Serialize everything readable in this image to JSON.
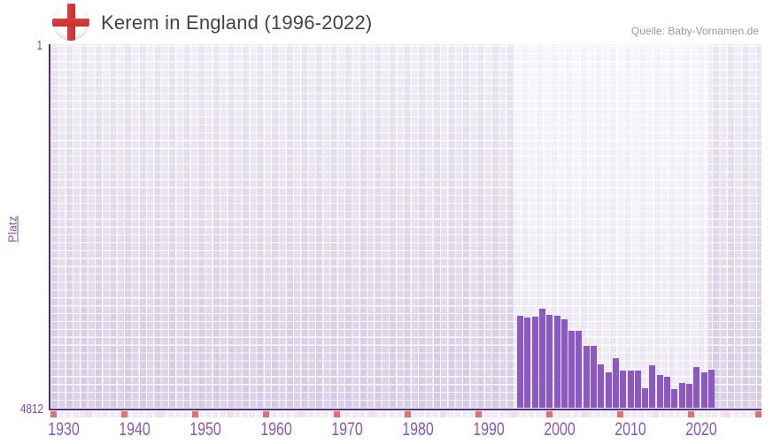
{
  "header": {
    "title": "Kerem in England (1996-2022)",
    "source": "Quelle: Baby-Vornamen.de",
    "flag_icon": "england-flag-icon"
  },
  "y_axis": {
    "label": "Platz",
    "top_tick": "1",
    "bottom_tick": "4812"
  },
  "x_axis": {
    "tick_labels": [
      "1930",
      "1940",
      "1950",
      "1960",
      "1970",
      "1980",
      "1990",
      "2000",
      "2010",
      "2020"
    ]
  },
  "chart_data": {
    "type": "bar",
    "title": "Kerem in England (1996-2022)",
    "ylabel": "Platz",
    "y_inverted": true,
    "ylim": [
      1,
      4812
    ],
    "xlim": [
      1928,
      2028
    ],
    "grid": true,
    "legend": false,
    "highlight_band_years": [
      1995.5,
      2022.5
    ],
    "series_name": "Platz",
    "categories": [
      1996,
      1997,
      1998,
      1999,
      2000,
      2001,
      2002,
      2003,
      2004,
      2005,
      2006,
      2007,
      2008,
      2009,
      2010,
      2011,
      2012,
      2013,
      2014,
      2015,
      2016,
      2017,
      2018,
      2019,
      2020,
      2021,
      2022
    ],
    "values": [
      3585,
      3613,
      3605,
      3500,
      3581,
      3593,
      3640,
      3791,
      3791,
      3989,
      3982,
      4234,
      4335,
      4157,
      4319,
      4319,
      4319,
      4544,
      4246,
      4378,
      4393,
      4560,
      4480,
      4496,
      4265,
      4334,
      4309
    ],
    "bar_color": "#8c59c3"
  },
  "colors": {
    "axis_line": "#53298a",
    "bar": "#8c59c3",
    "x_tick_text": "#8a58b8",
    "y_tick_text": "#7b4bad",
    "title_text": "#3e4449",
    "source_text": "#9c989e",
    "strip_red": "#e07070",
    "strip_pink": "#f5dce6",
    "flag_red": "#d13838"
  }
}
